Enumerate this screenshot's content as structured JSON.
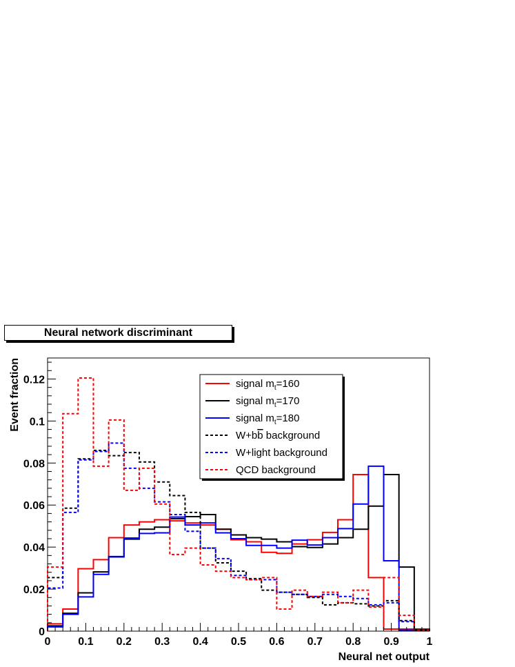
{
  "chart_data": {
    "type": "line",
    "title": "Neural network discriminant",
    "xlabel": "Neural net output",
    "ylabel": "Event fraction",
    "xlim": [
      0,
      1
    ],
    "ylim": [
      0,
      0.13
    ],
    "x_ticks": [
      "0",
      "0.1",
      "0.2",
      "0.3",
      "0.4",
      "0.5",
      "0.6",
      "0.7",
      "0.8",
      "0.9",
      "1"
    ],
    "y_ticks": [
      "0",
      "0.02",
      "0.04",
      "0.06",
      "0.08",
      "0.1",
      "0.12"
    ],
    "y_tick_values": [
      0,
      0.02,
      0.04,
      0.06,
      0.08,
      0.1,
      0.12
    ],
    "bin_edges": [
      0,
      0.04,
      0.08,
      0.12,
      0.16,
      0.2,
      0.24,
      0.28,
      0.32,
      0.36,
      0.4,
      0.44,
      0.48,
      0.52,
      0.56,
      0.6,
      0.64,
      0.68,
      0.72,
      0.76,
      0.8,
      0.84,
      0.88,
      0.92,
      0.96,
      1.0
    ],
    "grid": false,
    "legend_position": "top-center",
    "series": [
      {
        "name": "signal m_t=160",
        "label": "signal m",
        "sub": "t",
        "suffix": "=160",
        "color": "#ff0000",
        "dashed": false,
        "values": [
          0.0035,
          0.0105,
          0.0297,
          0.034,
          0.0445,
          0.0505,
          0.052,
          0.053,
          0.0525,
          0.0515,
          0.0505,
          0.0485,
          0.0435,
          0.0425,
          0.0375,
          0.037,
          0.0415,
          0.0435,
          0.047,
          0.053,
          0.0745,
          0.0255,
          0.001,
          0.001,
          0.001
        ]
      },
      {
        "name": "signal m_t=170",
        "label": "signal m",
        "sub": "t",
        "suffix": "=170",
        "color": "#000000",
        "dashed": false,
        "values": [
          0.0025,
          0.0085,
          0.0182,
          0.0282,
          0.0355,
          0.0438,
          0.0485,
          0.0495,
          0.0535,
          0.0545,
          0.0555,
          0.0485,
          0.0458,
          0.0445,
          0.0438,
          0.0425,
          0.0402,
          0.0398,
          0.0415,
          0.0445,
          0.0485,
          0.0595,
          0.0745,
          0.0305,
          0.0008
        ]
      },
      {
        "name": "signal m_t=180",
        "label": "signal m",
        "sub": "t",
        "suffix": "=180",
        "color": "#0000ff",
        "dashed": false,
        "values": [
          0.002,
          0.008,
          0.0163,
          0.027,
          0.0353,
          0.0443,
          0.0465,
          0.0468,
          0.0543,
          0.0505,
          0.0515,
          0.0468,
          0.044,
          0.0408,
          0.0408,
          0.0395,
          0.0433,
          0.041,
          0.0445,
          0.0488,
          0.0605,
          0.0785,
          0.0335,
          0.0005,
          0.0005
        ]
      },
      {
        "name": "W+bb background",
        "label": "W+b",
        "overline": "b",
        "suffix": " background",
        "color": "#000000",
        "dashed": true,
        "values": [
          0.0255,
          0.0585,
          0.082,
          0.086,
          0.0835,
          0.085,
          0.0805,
          0.071,
          0.0645,
          0.0565,
          0.0395,
          0.0325,
          0.0285,
          0.025,
          0.0195,
          0.0185,
          0.0175,
          0.016,
          0.0125,
          0.0135,
          0.013,
          0.012,
          0.0145,
          0.005,
          0.0005
        ]
      },
      {
        "name": "W+light background",
        "label": "W+light background",
        "color": "#0000ff",
        "dashed": true,
        "values": [
          0.0205,
          0.0565,
          0.0815,
          0.0855,
          0.0895,
          0.0775,
          0.068,
          0.0615,
          0.0555,
          0.0475,
          0.0395,
          0.0345,
          0.0265,
          0.0245,
          0.0245,
          0.0185,
          0.0175,
          0.0165,
          0.0175,
          0.0165,
          0.0155,
          0.0125,
          0.0135,
          0.0045,
          0.0005
        ]
      },
      {
        "name": "QCD background",
        "label": "QCD background",
        "color": "#ff0000",
        "dashed": true,
        "values": [
          0.0305,
          0.1035,
          0.1205,
          0.0785,
          0.1005,
          0.067,
          0.0775,
          0.0605,
          0.0365,
          0.0395,
          0.0315,
          0.0285,
          0.0255,
          0.0245,
          0.0255,
          0.0105,
          0.0195,
          0.0165,
          0.0185,
          0.0135,
          0.0195,
          0.0115,
          0.0255,
          0.0075,
          0.0005
        ]
      }
    ]
  }
}
